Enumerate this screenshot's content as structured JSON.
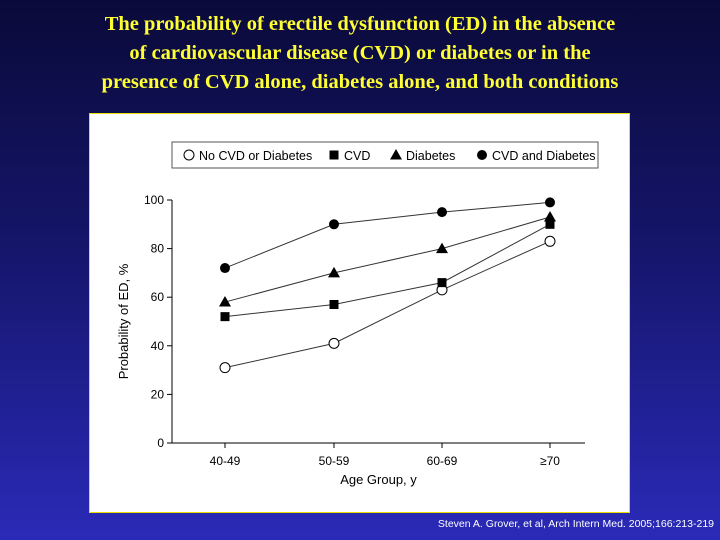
{
  "slide": {
    "title_lines": [
      "The probability of erectile dysfunction (ED) in the absence",
      "of cardiovascular disease (CVD) or diabetes or in the",
      "presence of CVD alone, diabetes alone, and both conditions"
    ],
    "citation": "Steven A. Grover, et al, Arch Intern Med. 2005;166:213-219",
    "colors": {
      "title": "#ffff33",
      "panel_border": "#e8e000",
      "background_top": "#0a0a3a",
      "background_bottom": "#2a2ab8"
    }
  },
  "chart_data": {
    "type": "line",
    "categories": [
      "40-49",
      "50-59",
      "60-69",
      "≥70"
    ],
    "xlabel": "Age Group, y",
    "ylabel": "Probability of ED, %",
    "ylim": [
      0,
      100
    ],
    "yticks": [
      0,
      20,
      40,
      60,
      80,
      100
    ],
    "grid": false,
    "legend_position": "top",
    "series": [
      {
        "name": "No CVD or Diabetes",
        "marker": "open-circle",
        "values": [
          31,
          41,
          63,
          83
        ]
      },
      {
        "name": "CVD",
        "marker": "filled-square",
        "values": [
          52,
          57,
          66,
          90
        ]
      },
      {
        "name": "Diabetes",
        "marker": "filled-triangle",
        "values": [
          58,
          70,
          80,
          93
        ]
      },
      {
        "name": "CVD and Diabetes",
        "marker": "filled-circle",
        "values": [
          72,
          90,
          95,
          99
        ]
      }
    ]
  }
}
